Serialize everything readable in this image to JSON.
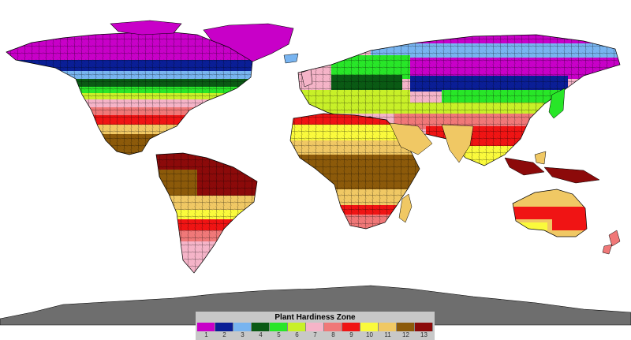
{
  "legend": {
    "title": "Plant Hardiness Zone",
    "zones": [
      {
        "label": "1",
        "color": "#c800c8"
      },
      {
        "label": "2",
        "color": "#0a1e96"
      },
      {
        "label": "3",
        "color": "#78b4f0"
      },
      {
        "label": "4",
        "color": "#0a5a14"
      },
      {
        "label": "5",
        "color": "#28e628"
      },
      {
        "label": "6",
        "color": "#c8f028"
      },
      {
        "label": "7",
        "color": "#f5b4c8"
      },
      {
        "label": "8",
        "color": "#f07878"
      },
      {
        "label": "9",
        "color": "#f01414"
      },
      {
        "label": "10",
        "color": "#fafa3c"
      },
      {
        "label": "11",
        "color": "#f0c864"
      },
      {
        "label": "12",
        "color": "#8c5a0a"
      },
      {
        "label": "13",
        "color": "#8c0a0a"
      }
    ]
  },
  "map": {
    "ocean_color": "#ffffff",
    "antarctica_color": "#6e6e6e",
    "border_color": "#000000"
  }
}
